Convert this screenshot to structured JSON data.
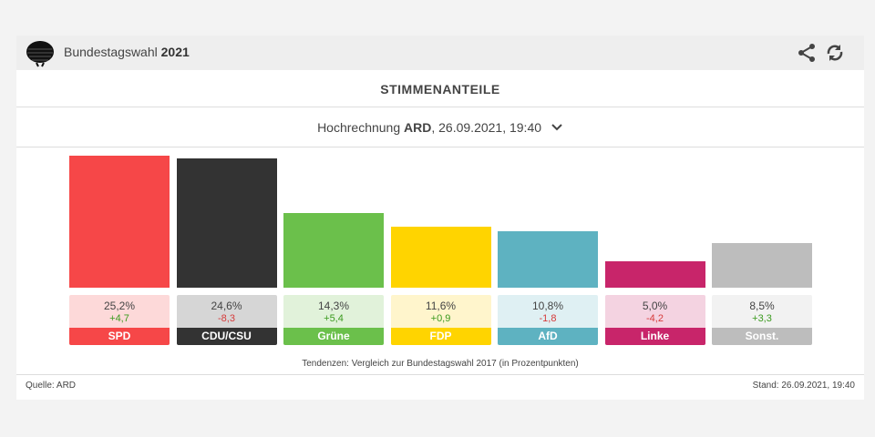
{
  "header": {
    "title_prefix": "Bundestagswahl",
    "title_year": "2021",
    "share_icon": "share-icon",
    "refresh_icon": "refresh-icon"
  },
  "section_title": "STIMMENANTEILE",
  "selector": {
    "prefix": "Hochrechnung",
    "source": "ARD",
    "suffix": ", 26.09.2021, 19:40"
  },
  "chart_data": {
    "type": "bar",
    "categories": [
      "SPD",
      "CDU/CSU",
      "Grüne",
      "FDP",
      "AfD",
      "Linke",
      "Sonst."
    ],
    "values": [
      25.2,
      24.6,
      14.3,
      11.6,
      10.8,
      5.0,
      8.5
    ],
    "value_labels": [
      "25,2%",
      "24,6%",
      "14,3%",
      "11,6%",
      "10,8%",
      "5,0%",
      "8,5%"
    ],
    "changes": [
      4.7,
      -8.3,
      5.4,
      0.9,
      -1.8,
      -4.2,
      3.3
    ],
    "change_labels": [
      "+4,7",
      "-8,3",
      "+5,4",
      "+0,9",
      "-1,8",
      "-4,2",
      "+3,3"
    ],
    "colors": [
      "#f64748",
      "#333333",
      "#6bc04b",
      "#ffd400",
      "#5eb2c1",
      "#c8256a",
      "#bdbdbd"
    ],
    "light_colors": [
      "#fdd9d9",
      "#d6d6d6",
      "#e1f2da",
      "#fff5cc",
      "#dff0f3",
      "#f4d3e1",
      "#f2f2f2"
    ],
    "positive_color": "#3a9a1e",
    "negative_color": "#d63a3a",
    "ylim": [
      0,
      25.2
    ],
    "grid": false
  },
  "note": "Tendenzen: Vergleich zur Bundestagswahl 2017 (in Prozentpunkten)",
  "footer": {
    "source": "Quelle: ARD",
    "updated": "Stand: 26.09.2021, 19:40"
  }
}
